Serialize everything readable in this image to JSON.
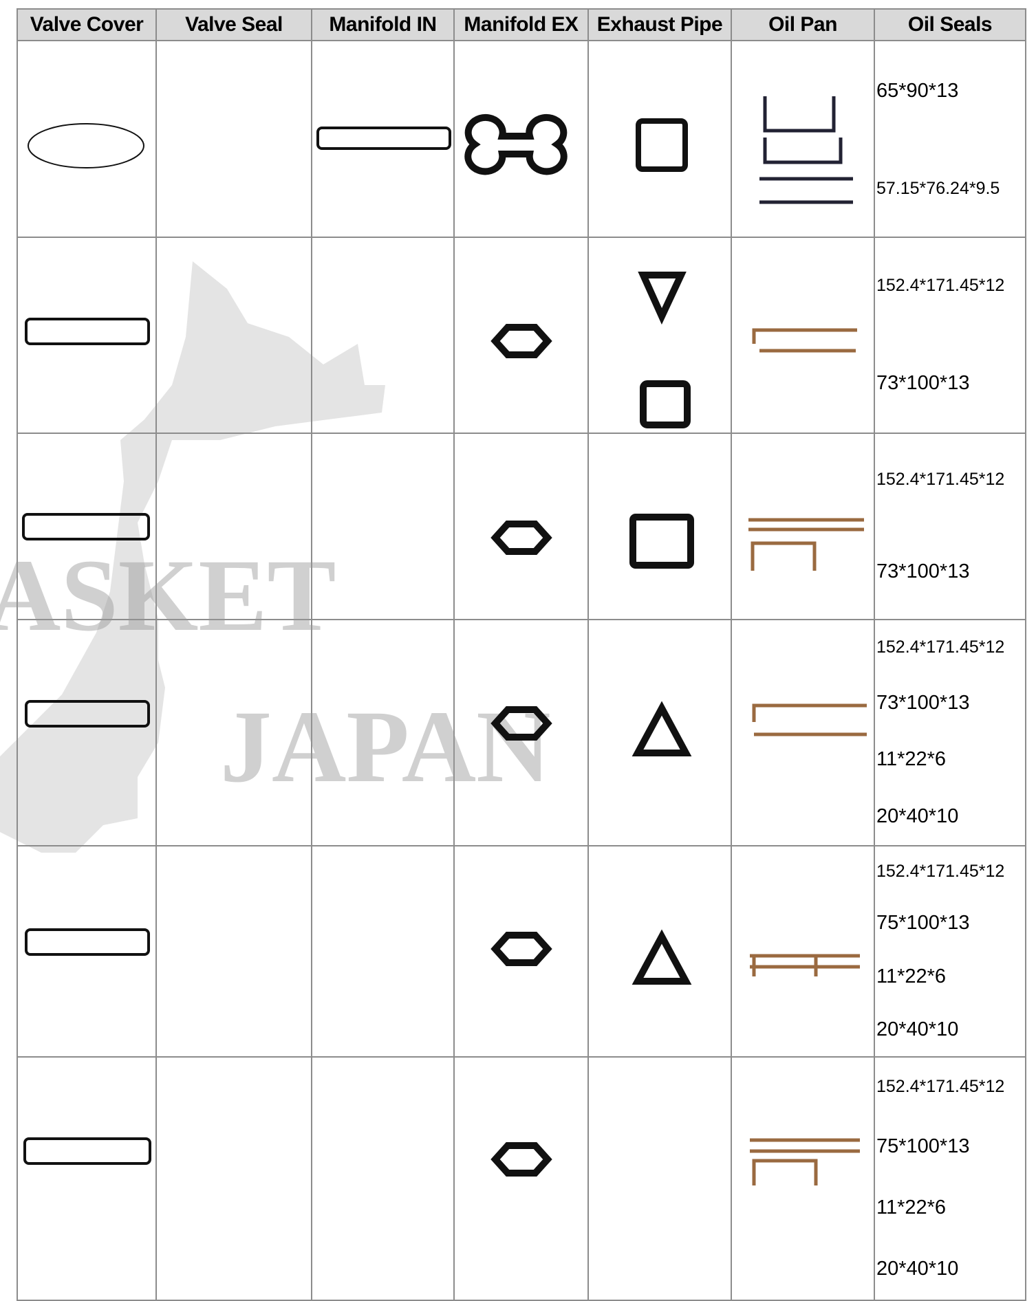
{
  "table": {
    "headers": [
      "Valve Cover",
      "Valve Seal",
      "Manifold IN",
      "Manifold EX",
      "Exhaust Pipe",
      "Oil Pan",
      "Oil Seals"
    ],
    "rows": [
      {
        "oil_seals": [
          "65*90*13",
          "57.15*76.24*9.5"
        ]
      },
      {
        "oil_seals": [
          "152.4*171.45*12",
          "73*100*13"
        ]
      },
      {
        "oil_seals": [
          "152.4*171.45*12",
          "73*100*13"
        ]
      },
      {
        "oil_seals": [
          "152.4*171.45*12",
          "73*100*13",
          "11*22*6",
          "20*40*10"
        ]
      },
      {
        "oil_seals": [
          "152.4*171.45*12",
          "75*100*13",
          "11*22*6",
          "20*40*10"
        ]
      },
      {
        "oil_seals": [
          "152.4*171.45*12",
          "75*100*13",
          "11*22*6",
          "20*40*10"
        ]
      }
    ]
  },
  "watermark": {
    "left": "ASKET",
    "right": "JAPAN"
  }
}
